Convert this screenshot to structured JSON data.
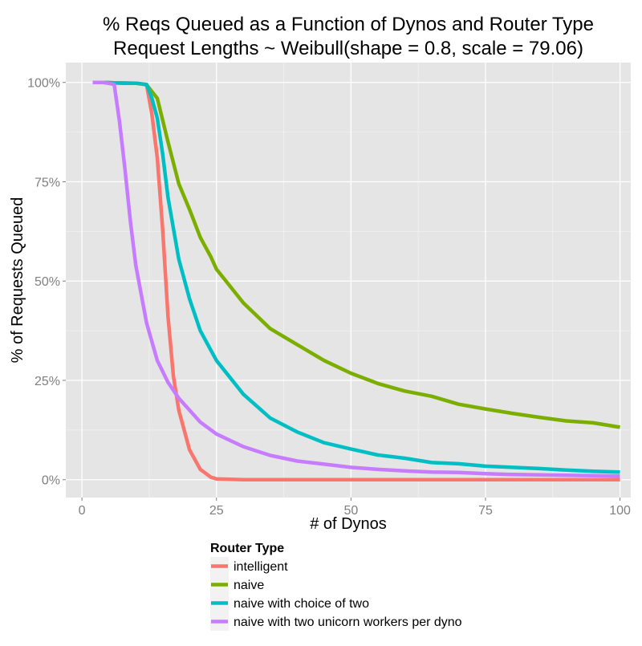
{
  "chart_data": {
    "type": "line",
    "title": "% Reqs Queued as a Function of Dynos and Router Type",
    "subtitle": "Request Lengths ~ Weibull(shape = 0.8, scale = 79.06)",
    "xlabel": "# of Dynos",
    "ylabel": "% of Requests Queued",
    "xlim": [
      -3,
      102
    ],
    "ylim": [
      -4.5,
      105
    ],
    "x_ticks": [
      0,
      25,
      50,
      75,
      100
    ],
    "x_tick_labels": [
      "0",
      "25",
      "50",
      "75",
      "100"
    ],
    "y_ticks": [
      0,
      25,
      50,
      75,
      100
    ],
    "y_tick_labels": [
      "0%",
      "25%",
      "50%",
      "75%",
      "100%"
    ],
    "grid": true,
    "legend": {
      "title": "Router Type",
      "position": "bottom"
    },
    "series": [
      {
        "name": "intelligent",
        "color": "#F8766D",
        "points": [
          [
            2,
            100
          ],
          [
            4,
            100
          ],
          [
            6,
            99.9
          ],
          [
            8,
            99.9
          ],
          [
            10,
            99.8
          ],
          [
            12,
            99.5
          ],
          [
            13,
            92
          ],
          [
            14,
            81
          ],
          [
            15,
            63
          ],
          [
            16,
            41
          ],
          [
            17,
            26
          ],
          [
            18,
            17.5
          ],
          [
            20,
            7.5
          ],
          [
            22,
            2.6
          ],
          [
            24,
            0.6
          ],
          [
            25,
            0.2
          ],
          [
            30,
            0
          ],
          [
            40,
            0
          ],
          [
            60,
            0
          ],
          [
            80,
            0
          ],
          [
            100,
            0
          ]
        ]
      },
      {
        "name": "naive",
        "color": "#7CAE00",
        "points": [
          [
            2,
            100
          ],
          [
            4,
            100
          ],
          [
            6,
            99.9
          ],
          [
            8,
            99.8
          ],
          [
            10,
            99.8
          ],
          [
            12,
            99.4
          ],
          [
            14,
            96
          ],
          [
            16,
            85
          ],
          [
            18,
            74.5
          ],
          [
            20,
            68
          ],
          [
            22,
            61
          ],
          [
            24,
            56
          ],
          [
            25,
            53
          ],
          [
            30,
            44.5
          ],
          [
            35,
            38
          ],
          [
            40,
            34
          ],
          [
            45,
            30
          ],
          [
            50,
            26.8
          ],
          [
            55,
            24.2
          ],
          [
            60,
            22.3
          ],
          [
            65,
            21
          ],
          [
            70,
            19
          ],
          [
            75,
            17.8
          ],
          [
            80,
            16.7
          ],
          [
            85,
            15.7
          ],
          [
            90,
            14.8
          ],
          [
            95,
            14.3
          ],
          [
            100,
            13.2
          ]
        ]
      },
      {
        "name": "naive with choice of two",
        "color": "#00BFC4",
        "points": [
          [
            2,
            100
          ],
          [
            4,
            100
          ],
          [
            6,
            99.9
          ],
          [
            8,
            99.8
          ],
          [
            10,
            99.8
          ],
          [
            12,
            99.5
          ],
          [
            13,
            96
          ],
          [
            14,
            91
          ],
          [
            15,
            82
          ],
          [
            16,
            71
          ],
          [
            18,
            55.5
          ],
          [
            20,
            45.5
          ],
          [
            22,
            37.5
          ],
          [
            25,
            30
          ],
          [
            30,
            21.5
          ],
          [
            35,
            15.5
          ],
          [
            40,
            12
          ],
          [
            45,
            9.3
          ],
          [
            50,
            7.7
          ],
          [
            55,
            6.2
          ],
          [
            60,
            5.4
          ],
          [
            65,
            4.3
          ],
          [
            70,
            4
          ],
          [
            75,
            3.4
          ],
          [
            80,
            3.1
          ],
          [
            85,
            2.8
          ],
          [
            90,
            2.4
          ],
          [
            95,
            2.1
          ],
          [
            100,
            1.9
          ]
        ]
      },
      {
        "name": "naive with two unicorn workers per dyno",
        "color": "#C77CFF",
        "points": [
          [
            2,
            100
          ],
          [
            4,
            100
          ],
          [
            6,
            99.5
          ],
          [
            7,
            90
          ],
          [
            8,
            78
          ],
          [
            9,
            65
          ],
          [
            10,
            54
          ],
          [
            12,
            39.5
          ],
          [
            14,
            30
          ],
          [
            16,
            24.5
          ],
          [
            18,
            20.5
          ],
          [
            20,
            17.5
          ],
          [
            22,
            14.5
          ],
          [
            25,
            11.5
          ],
          [
            30,
            8.3
          ],
          [
            35,
            6.1
          ],
          [
            40,
            4.7
          ],
          [
            45,
            3.9
          ],
          [
            50,
            3.1
          ],
          [
            55,
            2.6
          ],
          [
            60,
            2.2
          ],
          [
            65,
            1.9
          ],
          [
            70,
            1.8
          ],
          [
            75,
            1.5
          ],
          [
            80,
            1.3
          ],
          [
            85,
            1.2
          ],
          [
            90,
            1.1
          ],
          [
            95,
            1
          ],
          [
            100,
            0.9
          ]
        ]
      }
    ]
  }
}
